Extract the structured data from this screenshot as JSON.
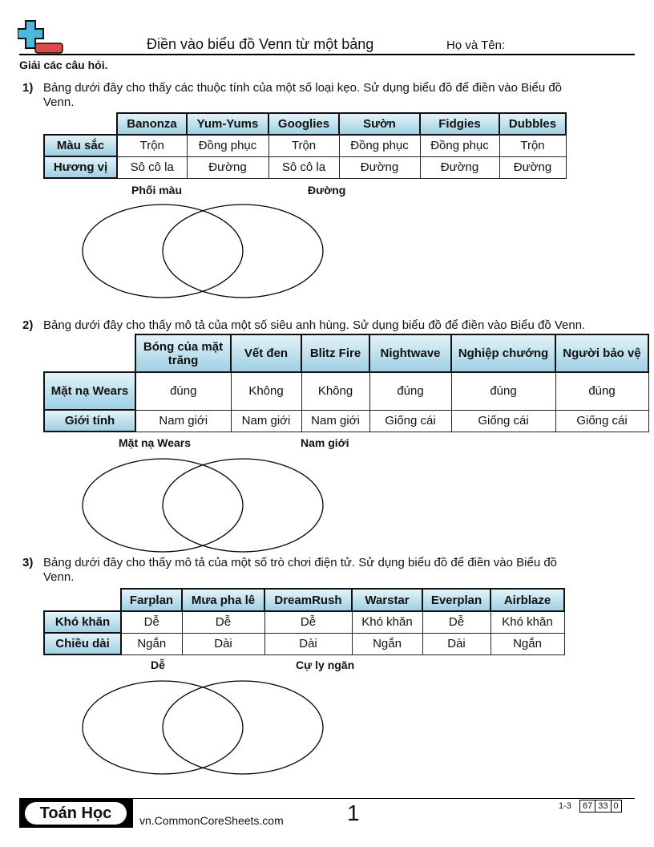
{
  "header": {
    "title": "Điền vào biểu đồ Venn từ một bảng",
    "name_label": "Họ và Tên:",
    "instructions": "Giải các câu hỏi."
  },
  "questions": [
    {
      "number": "1)",
      "text": "Bảng dưới đây cho thấy các thuộc tính của một số loại kẹo. Sử dụng biểu đồ để điền vào Biểu đồ Venn.",
      "columns": [
        "Banonza",
        "Yum-Yums",
        "Googlies",
        "Sườn",
        "Fidgies",
        "Dubbles"
      ],
      "rows": [
        {
          "label": "Màu sắc",
          "cells": [
            "Trộn",
            "Đồng phục",
            "Trộn",
            "Đồng phục",
            "Đồng phục",
            "Trộn"
          ]
        },
        {
          "label": "Hương vị",
          "cells": [
            "Sô cô la",
            "Đường",
            "Sô cô la",
            "Đường",
            "Đường",
            "Đường"
          ]
        }
      ],
      "venn_labels": [
        "Phối màu",
        "Đường"
      ]
    },
    {
      "number": "2)",
      "text": "Bảng dưới đây cho thấy mô tả của một số siêu anh hùng. Sử dụng biểu đồ để điền vào Biểu đồ Venn.",
      "columns": [
        "Bóng của mặt trăng",
        "Vết đen",
        "Blitz Fire",
        "Nightwave",
        "Nghiệp chướng",
        "Người bảo vệ"
      ],
      "rows": [
        {
          "label": "Mặt nạ Wears",
          "cells": [
            "đúng",
            "Không",
            "Không",
            "đúng",
            "đúng",
            "đúng"
          ]
        },
        {
          "label": "Giới tính",
          "cells": [
            "Nam giới",
            "Nam giới",
            "Nam giới",
            "Giống cái",
            "Giống cái",
            "Giống cái"
          ]
        }
      ],
      "venn_labels": [
        "Mặt nạ Wears",
        "Nam giới"
      ]
    },
    {
      "number": "3)",
      "text": "Bảng dưới đây cho thấy mô tả của một số trò chơi điện tử. Sử dụng biểu đồ để điền vào Biểu đồ Venn.",
      "columns": [
        "Farplan",
        "Mưa pha lê",
        "DreamRush",
        "Warstar",
        "Everplan",
        "Airblaze"
      ],
      "rows": [
        {
          "label": "Khó khăn",
          "cells": [
            "Dễ",
            "Dễ",
            "Dễ",
            "Khó khăn",
            "Dễ",
            "Khó khăn"
          ]
        },
        {
          "label": "Chiều dài",
          "cells": [
            "Ngắn",
            "Dài",
            "Dài",
            "Ngắn",
            "Dài",
            "Ngắn"
          ]
        }
      ],
      "venn_labels": [
        "Dễ",
        "Cự ly ngăn"
      ]
    }
  ],
  "footer": {
    "brand": "Toán Học",
    "site": "vn.CommonCoreSheets.com",
    "page": "1",
    "range": "1-3",
    "scores": [
      "67",
      "33",
      "0"
    ]
  },
  "colors": {
    "logo_plus": "#4bb8dc",
    "logo_minus": "#e04848",
    "header_cell": "#9fd0e3"
  }
}
